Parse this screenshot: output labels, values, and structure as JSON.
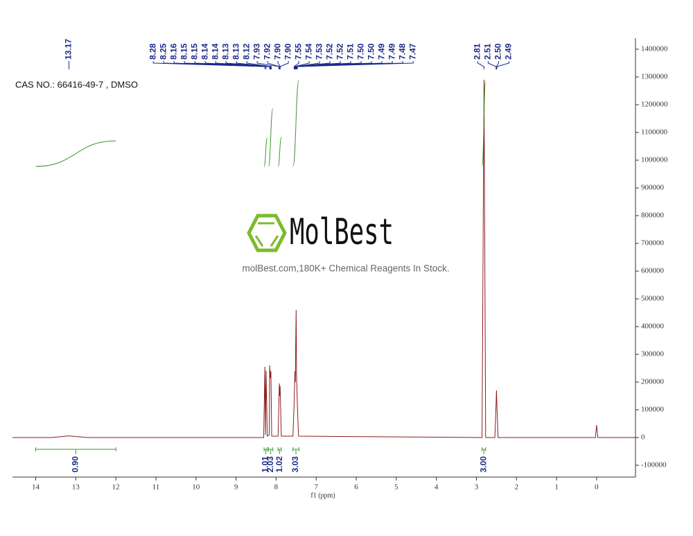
{
  "chart_data": {
    "type": "nmr",
    "annotation": "CAS NO.: 66416-49-7 , DMSO",
    "watermark": "MolBest",
    "tagline": "molBest.com,180K+ Chemical Reagents In Stock.",
    "x_label": "f1 (ppm)",
    "color": "#8b1a1a",
    "integral_color": "#3a9a2a",
    "label_color": "#1c2a8c",
    "x": [
      14.58,
      13.6,
      13.17,
      12.7,
      8.31,
      8.28,
      8.265,
      8.25,
      8.22,
      8.17,
      8.16,
      8.145,
      8.13,
      8.11,
      7.95,
      7.92,
      7.91,
      7.9,
      7.87,
      7.58,
      7.55,
      7.53,
      7.52,
      7.5,
      7.49,
      7.47,
      7.44,
      2.86,
      2.81,
      2.77,
      2.54,
      2.51,
      2.5,
      2.49,
      2.46,
      0.03,
      0.0,
      -0.03,
      -0.97
    ],
    "values": [
      0,
      0,
      6000,
      0,
      0,
      255000,
      10000,
      240000,
      5000,
      10000,
      260000,
      215000,
      240000,
      5000,
      5000,
      195000,
      150000,
      185000,
      5000,
      5000,
      120000,
      240000,
      200000,
      460000,
      230000,
      120000,
      5000,
      0,
      1290000,
      0,
      0,
      120000,
      170000,
      120000,
      0,
      0,
      45000,
      0,
      0
    ],
    "xlim": [
      14.58,
      -0.97
    ],
    "ylim": [
      -142500,
      1440000
    ],
    "xticks": [
      14,
      13,
      12,
      11,
      10,
      9,
      8,
      7,
      6,
      5,
      4,
      3,
      2,
      1,
      0
    ],
    "yticks": [
      -100000,
      0,
      100000,
      200000,
      300000,
      400000,
      500000,
      600000,
      700000,
      800000,
      900000,
      1000000,
      1100000,
      1200000,
      1300000,
      1400000
    ],
    "peaks": [
      {
        "value": 13.17,
        "label": "13.17"
      },
      {
        "value": 8.28,
        "label": "8.28"
      },
      {
        "value": 8.25,
        "label": "8.25"
      },
      {
        "value": 8.16,
        "label": "8.16"
      },
      {
        "value": 8.15,
        "label": "8.15"
      },
      {
        "value": 8.15,
        "label": "8.15"
      },
      {
        "value": 8.14,
        "label": "8.14"
      },
      {
        "value": 8.14,
        "label": "8.14"
      },
      {
        "value": 8.13,
        "label": "8.13"
      },
      {
        "value": 8.13,
        "label": "8.13"
      },
      {
        "value": 8.12,
        "label": "8.12"
      },
      {
        "value": 7.93,
        "label": "7.93"
      },
      {
        "value": 7.92,
        "label": "7.92"
      },
      {
        "value": 7.9,
        "label": "7.90"
      },
      {
        "value": 7.9,
        "label": "7.90"
      },
      {
        "value": 7.55,
        "label": "7.55"
      },
      {
        "value": 7.54,
        "label": "7.54"
      },
      {
        "value": 7.53,
        "label": "7.53"
      },
      {
        "value": 7.52,
        "label": "7.52"
      },
      {
        "value": 7.52,
        "label": "7.52"
      },
      {
        "value": 7.51,
        "label": "7.51"
      },
      {
        "value": 7.5,
        "label": "7.50"
      },
      {
        "value": 7.5,
        "label": "7.50"
      },
      {
        "value": 7.49,
        "label": "7.49"
      },
      {
        "value": 7.49,
        "label": "7.49"
      },
      {
        "value": 7.48,
        "label": "7.48"
      },
      {
        "value": 7.47,
        "label": "7.47"
      },
      {
        "value": 2.81,
        "label": "2.81"
      },
      {
        "value": 2.51,
        "label": "2.51"
      },
      {
        "value": 2.5,
        "label": "2.50"
      },
      {
        "value": 2.49,
        "label": "2.49"
      }
    ],
    "integrals": [
      {
        "from": 14.0,
        "to": 12.0,
        "value": 0.9,
        "label": "0.90"
      },
      {
        "from": 8.3,
        "to": 8.22,
        "value": 1.01,
        "label": "1.01"
      },
      {
        "from": 8.19,
        "to": 8.08,
        "value": 2.03,
        "label": "2.03"
      },
      {
        "from": 7.95,
        "to": 7.87,
        "value": 1.02,
        "label": "1.02"
      },
      {
        "from": 7.58,
        "to": 7.43,
        "value": 3.03,
        "label": "3.03"
      },
      {
        "from": 2.86,
        "to": 2.77,
        "value": 3.0,
        "label": "3.00"
      }
    ]
  }
}
